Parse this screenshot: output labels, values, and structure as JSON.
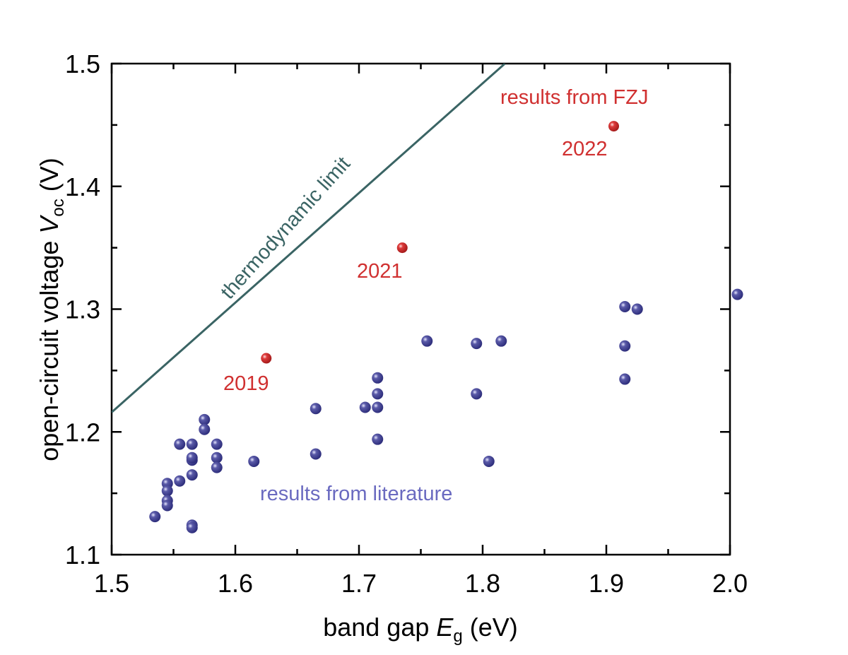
{
  "chart_data": {
    "type": "scatter",
    "title": "",
    "xlabel": "band gap ",
    "xlabel_symbol": "E",
    "xlabel_sub": "g",
    "xlabel_unit": " (eV)",
    "ylabel": "open-circuit voltage ",
    "ylabel_symbol": "V",
    "ylabel_sub": "oc",
    "ylabel_unit": " (V)",
    "xlim": [
      1.5,
      2.0
    ],
    "ylim": [
      1.1,
      1.5
    ],
    "xticks": [
      "1.5",
      "1.6",
      "1.7",
      "1.8",
      "1.9",
      "2.0"
    ],
    "yticks": [
      "1.1",
      "1.2",
      "1.3",
      "1.4",
      "1.5"
    ],
    "grid": false,
    "series": [
      {
        "name": "results from literature",
        "color": "#3b3b8c",
        "points": [
          [
            1.535,
            1.131
          ],
          [
            1.545,
            1.158
          ],
          [
            1.545,
            1.152
          ],
          [
            1.545,
            1.144
          ],
          [
            1.545,
            1.14
          ],
          [
            1.555,
            1.16
          ],
          [
            1.555,
            1.19
          ],
          [
            1.565,
            1.19
          ],
          [
            1.565,
            1.177
          ],
          [
            1.565,
            1.179
          ],
          [
            1.565,
            1.165
          ],
          [
            1.565,
            1.124
          ],
          [
            1.565,
            1.122
          ],
          [
            1.575,
            1.21
          ],
          [
            1.575,
            1.202
          ],
          [
            1.585,
            1.19
          ],
          [
            1.585,
            1.179
          ],
          [
            1.585,
            1.171
          ],
          [
            1.615,
            1.176
          ],
          [
            1.665,
            1.219
          ],
          [
            1.665,
            1.182
          ],
          [
            1.705,
            1.22
          ],
          [
            1.715,
            1.22
          ],
          [
            1.715,
            1.231
          ],
          [
            1.715,
            1.244
          ],
          [
            1.715,
            1.194
          ],
          [
            1.755,
            1.274
          ],
          [
            1.795,
            1.272
          ],
          [
            1.795,
            1.231
          ],
          [
            1.815,
            1.274
          ],
          [
            1.805,
            1.176
          ],
          [
            1.915,
            1.302
          ],
          [
            1.925,
            1.3
          ],
          [
            1.915,
            1.27
          ],
          [
            1.915,
            1.243
          ],
          [
            2.006,
            1.312
          ]
        ]
      },
      {
        "name": "results from FZJ",
        "color": "#d03030",
        "points": [
          [
            1.625,
            1.26
          ],
          [
            1.735,
            1.35
          ],
          [
            1.906,
            1.449
          ]
        ],
        "point_labels": [
          "2019",
          "2021",
          "2022"
        ]
      },
      {
        "name": "thermodynamic limit",
        "type": "line",
        "color": "#3a6464",
        "points": [
          [
            1.5,
            1.216
          ],
          [
            1.818,
            1.5
          ]
        ]
      }
    ]
  }
}
